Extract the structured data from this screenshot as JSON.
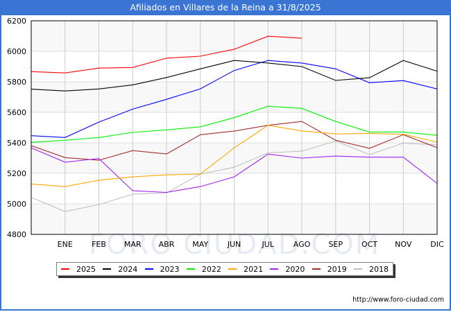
{
  "header": {
    "title": "Afiliados en Villares de la Reina a 31/8/2025"
  },
  "footer": {
    "url": "http://www.foro-ciudad.com"
  },
  "watermark": "FORO CIUDAD.COM",
  "chart_data": {
    "type": "line",
    "title": "Afiliados en Villares de la Reina a 31/8/2025",
    "xlabel": "",
    "ylabel": "",
    "categories": [
      "",
      "ENE",
      "FEB",
      "MAR",
      "ABR",
      "MAY",
      "JUN",
      "JUL",
      "AGO",
      "SEP",
      "OCT",
      "NOV",
      "DIC"
    ],
    "ylim": [
      4800,
      6200
    ],
    "yticks": [
      4800,
      5000,
      5200,
      5400,
      5600,
      5800,
      6000,
      6200
    ],
    "grid": true,
    "legend_position": "bottom",
    "series": [
      {
        "name": "2025",
        "color": "#ff0000",
        "values": [
          5867,
          5858,
          5890,
          5894,
          5955,
          5968,
          6013,
          6099,
          6086,
          null,
          null,
          null,
          null
        ]
      },
      {
        "name": "2024",
        "color": "#000000",
        "values": [
          5752,
          5740,
          5753,
          5780,
          5828,
          5885,
          5940,
          5923,
          5900,
          5809,
          5827,
          5940,
          5870
        ]
      },
      {
        "name": "2023",
        "color": "#0000ff",
        "values": [
          5447,
          5435,
          5536,
          5621,
          5685,
          5754,
          5874,
          5940,
          5923,
          5885,
          5794,
          5808,
          5753
        ]
      },
      {
        "name": "2022",
        "color": "#00ee00",
        "values": [
          5403,
          5417,
          5435,
          5468,
          5485,
          5505,
          5565,
          5640,
          5626,
          5540,
          5471,
          5471,
          5449
        ]
      },
      {
        "name": "2021",
        "color": "#ffa500",
        "values": [
          5130,
          5113,
          5155,
          5177,
          5190,
          5195,
          5367,
          5515,
          5478,
          5458,
          5462,
          5456,
          5405
        ]
      },
      {
        "name": "2020",
        "color": "#a020f0",
        "values": [
          5367,
          5273,
          5297,
          5086,
          5075,
          5113,
          5177,
          5326,
          5300,
          5313,
          5306,
          5306,
          5134
        ]
      },
      {
        "name": "2019",
        "color": "#a52a2a",
        "values": [
          5382,
          5303,
          5286,
          5349,
          5327,
          5453,
          5477,
          5515,
          5540,
          5417,
          5364,
          5453,
          5368
        ]
      },
      {
        "name": "2018",
        "color": "#c0c0c0",
        "values": [
          5042,
          4950,
          4995,
          5063,
          5072,
          5195,
          5240,
          5334,
          5346,
          5412,
          5323,
          5398,
          5387
        ]
      }
    ]
  }
}
